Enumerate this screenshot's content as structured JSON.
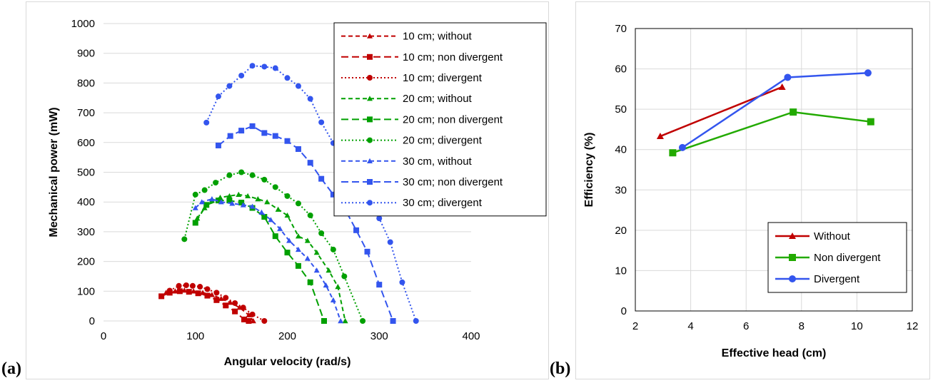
{
  "panel_labels": {
    "a": "(a)",
    "b": "(b)"
  },
  "chart_data": [
    {
      "type": "line",
      "xlabel": "Angular velocity (rad/s)",
      "ylabel": "Mechanical power (mW)",
      "xlim": [
        0,
        400
      ],
      "ylim": [
        0,
        1000
      ],
      "xticks": [
        0,
        100,
        200,
        300,
        400
      ],
      "yticks": [
        0,
        100,
        200,
        300,
        400,
        500,
        600,
        700,
        800,
        900,
        1000
      ],
      "grid": "horizontal",
      "legend_position": "top-right",
      "series": [
        {
          "name": "10 cm; without",
          "color": "#c00000",
          "dash": "dashed",
          "marker": "triangle",
          "x": [
            68,
            78,
            88,
            98,
            108,
            118,
            128,
            138,
            148,
            158,
            163
          ],
          "y": [
            95,
            100,
            103,
            100,
            95,
            88,
            75,
            62,
            45,
            20,
            0
          ]
        },
        {
          "name": "10 cm; non divergent",
          "color": "#c00000",
          "dash": "longdash",
          "marker": "square",
          "x": [
            63,
            72,
            83,
            93,
            103,
            113,
            123,
            133,
            143,
            153,
            158
          ],
          "y": [
            83,
            95,
            100,
            98,
            93,
            85,
            70,
            52,
            32,
            5,
            0
          ]
        },
        {
          "name": "10 cm; divergent",
          "color": "#c00000",
          "dash": "dotted",
          "marker": "circle",
          "x": [
            72,
            82,
            90,
            97,
            105,
            113,
            123,
            133,
            143,
            152,
            162,
            175
          ],
          "y": [
            102,
            118,
            120,
            118,
            115,
            107,
            95,
            78,
            60,
            45,
            22,
            0
          ]
        },
        {
          "name": "20 cm; without",
          "color": "#00a000",
          "dash": "dashed",
          "marker": "triangle",
          "x": [
            102,
            110,
            118,
            127,
            137,
            147,
            157,
            168,
            178,
            190,
            200,
            212,
            222,
            232,
            245,
            255,
            263
          ],
          "y": [
            345,
            380,
            405,
            415,
            420,
            425,
            420,
            410,
            400,
            375,
            355,
            285,
            270,
            230,
            170,
            115,
            0
          ]
        },
        {
          "name": "20 cm; non divergent",
          "color": "#00a000",
          "dash": "longdash",
          "marker": "square",
          "x": [
            100,
            112,
            125,
            137,
            150,
            162,
            175,
            187,
            200,
            212,
            225,
            240
          ],
          "y": [
            330,
            390,
            405,
            405,
            398,
            380,
            350,
            285,
            230,
            185,
            130,
            0
          ]
        },
        {
          "name": "20 cm; divergent",
          "color": "#00a000",
          "dash": "dotted",
          "marker": "circle",
          "x": [
            88,
            100,
            110,
            122,
            137,
            150,
            162,
            175,
            187,
            200,
            212,
            225,
            237,
            250,
            262,
            282
          ],
          "y": [
            275,
            425,
            440,
            465,
            490,
            500,
            490,
            475,
            450,
            420,
            395,
            355,
            295,
            240,
            150,
            0
          ]
        },
        {
          "name": "30 cm, without",
          "color": "#3355ee",
          "dash": "dashed",
          "marker": "triangle",
          "x": [
            100,
            107,
            118,
            128,
            140,
            152,
            162,
            172,
            182,
            192,
            202,
            212,
            222,
            232,
            242,
            250,
            258
          ],
          "y": [
            380,
            400,
            410,
            400,
            395,
            390,
            385,
            365,
            340,
            310,
            270,
            240,
            210,
            170,
            120,
            70,
            0
          ]
        },
        {
          "name": "30 cm; non divergent",
          "color": "#3355ee",
          "dash": "longdash",
          "marker": "square",
          "x": [
            125,
            138,
            150,
            162,
            175,
            187,
            200,
            212,
            225,
            237,
            250,
            262,
            275,
            287,
            300,
            315
          ],
          "y": [
            590,
            622,
            640,
            655,
            632,
            622,
            605,
            578,
            532,
            478,
            425,
            380,
            305,
            233,
            122,
            0
          ]
        },
        {
          "name": "30 cm; divergent",
          "color": "#3355ee",
          "dash": "dotted",
          "marker": "circle",
          "x": [
            112,
            125,
            137,
            150,
            162,
            175,
            187,
            200,
            212,
            225,
            237,
            250,
            262,
            275,
            287,
            300,
            312,
            325,
            340
          ],
          "y": [
            667,
            755,
            790,
            825,
            858,
            855,
            850,
            817,
            790,
            747,
            668,
            598,
            525,
            460,
            390,
            345,
            265,
            130,
            0
          ]
        }
      ]
    },
    {
      "type": "line",
      "xlabel": "Effective head (cm)",
      "ylabel": "Efficiency (%)",
      "xlim": [
        2,
        12
      ],
      "ylim": [
        0,
        70
      ],
      "xticks": [
        2,
        4,
        6,
        8,
        10,
        12
      ],
      "yticks": [
        0,
        10,
        20,
        30,
        40,
        50,
        60,
        70
      ],
      "grid": "both",
      "legend_position": "bottom-right",
      "series": [
        {
          "name": "Without",
          "color": "#c00000",
          "marker": "triangle",
          "x": [
            2.9,
            7.3
          ],
          "y": [
            43.3,
            55.5
          ]
        },
        {
          "name": "Non divergent",
          "color": "#22aa00",
          "marker": "square",
          "x": [
            3.35,
            7.7,
            10.5
          ],
          "y": [
            39.2,
            49.3,
            46.9
          ]
        },
        {
          "name": "Divergent",
          "color": "#3355ee",
          "marker": "circle",
          "x": [
            3.7,
            7.5,
            10.4
          ],
          "y": [
            40.5,
            57.9,
            59.0
          ]
        }
      ]
    }
  ]
}
